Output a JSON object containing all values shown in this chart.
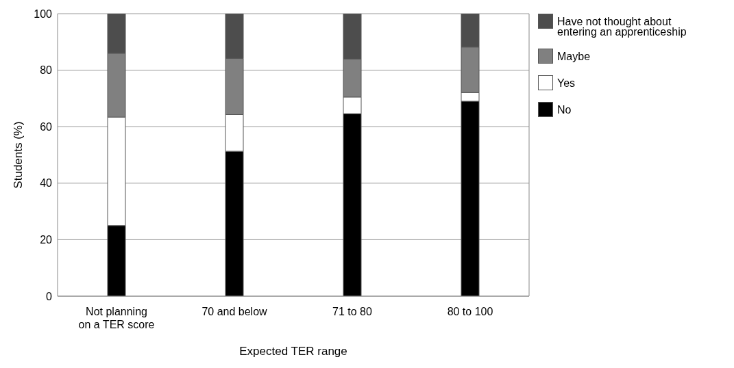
{
  "chart_data": {
    "type": "bar",
    "xlabel": "Expected TER range",
    "ylabel": "Students (%)",
    "categories": [
      "Not planning\non a TER score",
      "70 and below",
      "71 to 80",
      "80 to 100"
    ],
    "stacked": true,
    "series": [
      {
        "name": "No",
        "color": "#000000",
        "values": [
          25,
          51.3,
          64.6,
          69
        ]
      },
      {
        "name": "Yes",
        "color": "#ffffff",
        "values": [
          38.4,
          13,
          5.9,
          3.1
        ]
      },
      {
        "name": "Maybe",
        "color": "#808080",
        "values": [
          22.6,
          19.9,
          13.5,
          16.1
        ]
      },
      {
        "name": "Have not thought about\nentering an apprenticeship",
        "color": "#4d4d4d",
        "values": [
          14,
          15.8,
          16,
          11.8
        ]
      }
    ],
    "ylim": [
      0,
      100
    ],
    "yticks": [
      0,
      20,
      40,
      60,
      80,
      100
    ],
    "grid": "y",
    "legend": "right"
  }
}
